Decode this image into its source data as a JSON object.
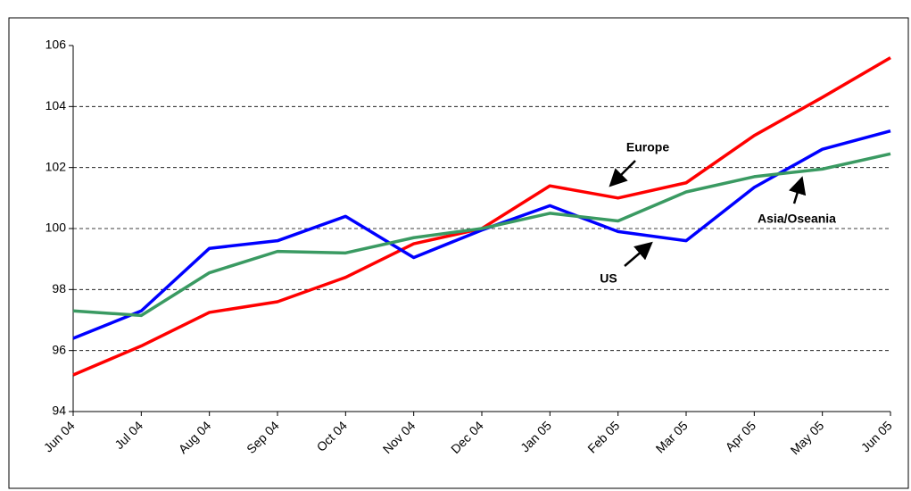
{
  "chart_data": {
    "type": "line",
    "categories": [
      "Jun 04",
      "Jul 04",
      "Aug 04",
      "Sep 04",
      "Oct 04",
      "Nov 04",
      "Dec 04",
      "Jan 05",
      "Feb 05",
      "Mar 05",
      "Apr 05",
      "May 05",
      "Jun 05"
    ],
    "series": [
      {
        "name": "Europe",
        "color": "#ff0000",
        "values": [
          95.2,
          96.15,
          97.25,
          97.6,
          98.4,
          99.5,
          100.0,
          101.4,
          101.0,
          101.5,
          103.05,
          104.3,
          105.6
        ]
      },
      {
        "name": "US",
        "color": "#0000ff",
        "values": [
          96.4,
          97.3,
          99.35,
          99.6,
          100.4,
          99.05,
          99.95,
          100.75,
          99.9,
          99.6,
          101.35,
          102.6,
          103.2
        ]
      },
      {
        "name": "Asia/Oseania",
        "color": "#3a9a62",
        "values": [
          97.3,
          97.15,
          98.55,
          99.25,
          99.2,
          99.7,
          100.0,
          100.5,
          100.25,
          101.2,
          101.7,
          101.95,
          102.45
        ]
      }
    ],
    "ylim": [
      94,
      106
    ],
    "yticks": [
      94,
      96,
      98,
      100,
      102,
      104,
      106
    ],
    "grid": true
  }
}
